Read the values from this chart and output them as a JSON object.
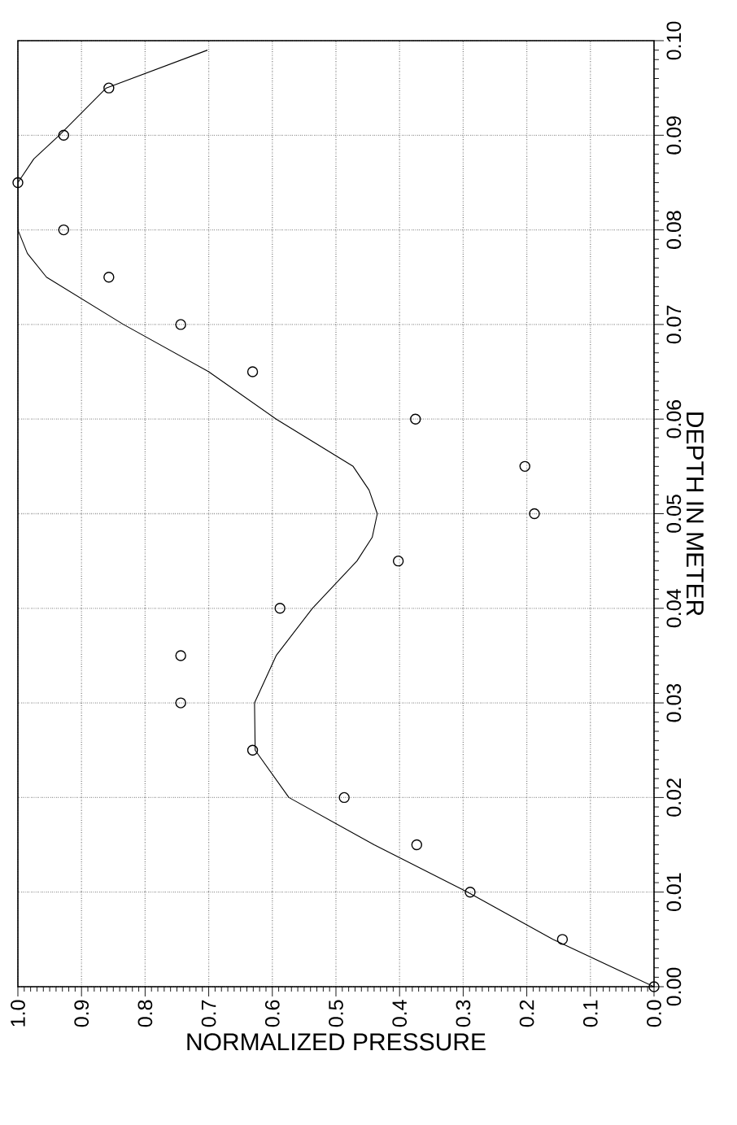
{
  "chart_data": {
    "type": "scatter",
    "xlabel": "NORMALIZED PRESSURE",
    "ylabel": "DEPTH IN METER",
    "series": [
      {
        "color": "#000000",
        "marker": "circle",
        "x": [
          0.0,
          0.144,
          0.289,
          0.373,
          0.487,
          0.631,
          0.744,
          0.744,
          0.588,
          0.402,
          0.188,
          0.203,
          0.375,
          0.631,
          0.744,
          0.857,
          0.928,
          1.0,
          0.928,
          0.857
        ],
        "values": [
          0,
          0.005,
          0.01,
          0.015,
          0.02,
          0.025,
          0.03,
          0.035,
          0.04,
          0.045,
          0.05,
          0.055,
          0.06,
          0.065,
          0.07,
          0.075,
          0.08,
          0.085,
          0.09,
          0.095
        ]
      },
      {
        "type": "line",
        "color": "#000000",
        "marker": "none",
        "x": [
          0.0,
          0.159,
          0.293,
          0.44,
          0.574,
          0.627,
          0.628,
          0.594,
          0.537,
          0.467,
          0.443,
          0.435,
          0.448,
          0.473,
          0.594,
          0.7,
          0.834,
          0.955,
          0.985,
          1.0,
          1.0,
          0.975,
          0.935,
          0.861,
          0.702
        ],
        "values": [
          0,
          0.005,
          0.01,
          0.015,
          0.02,
          0.025,
          0.03,
          0.035,
          0.04,
          0.045,
          0.0475,
          0.05,
          0.0525,
          0.055,
          0.06,
          0.065,
          0.07,
          0.075,
          0.0775,
          0.08,
          0.085,
          0.0875,
          0.09,
          0.095,
          0.099
        ]
      }
    ],
    "xlim": [
      1,
      0
    ],
    "ylim": [
      0,
      0.1
    ],
    "xticks": [
      {
        "value": 1,
        "label": "1.0"
      },
      0.9,
      0.8,
      0.7,
      0.6,
      0.5,
      0.4,
      0.3,
      0.2,
      0.1,
      {
        "value": 0,
        "label": "0.0"
      }
    ],
    "yticks": [
      {
        "value": 0,
        "label": "0.00"
      },
      0.01,
      0.02,
      0.03,
      0.04,
      0.05,
      0.06,
      0.07,
      0.08,
      0.09,
      {
        "value": 0.1,
        "label": "0.10"
      }
    ],
    "grid": true
  }
}
